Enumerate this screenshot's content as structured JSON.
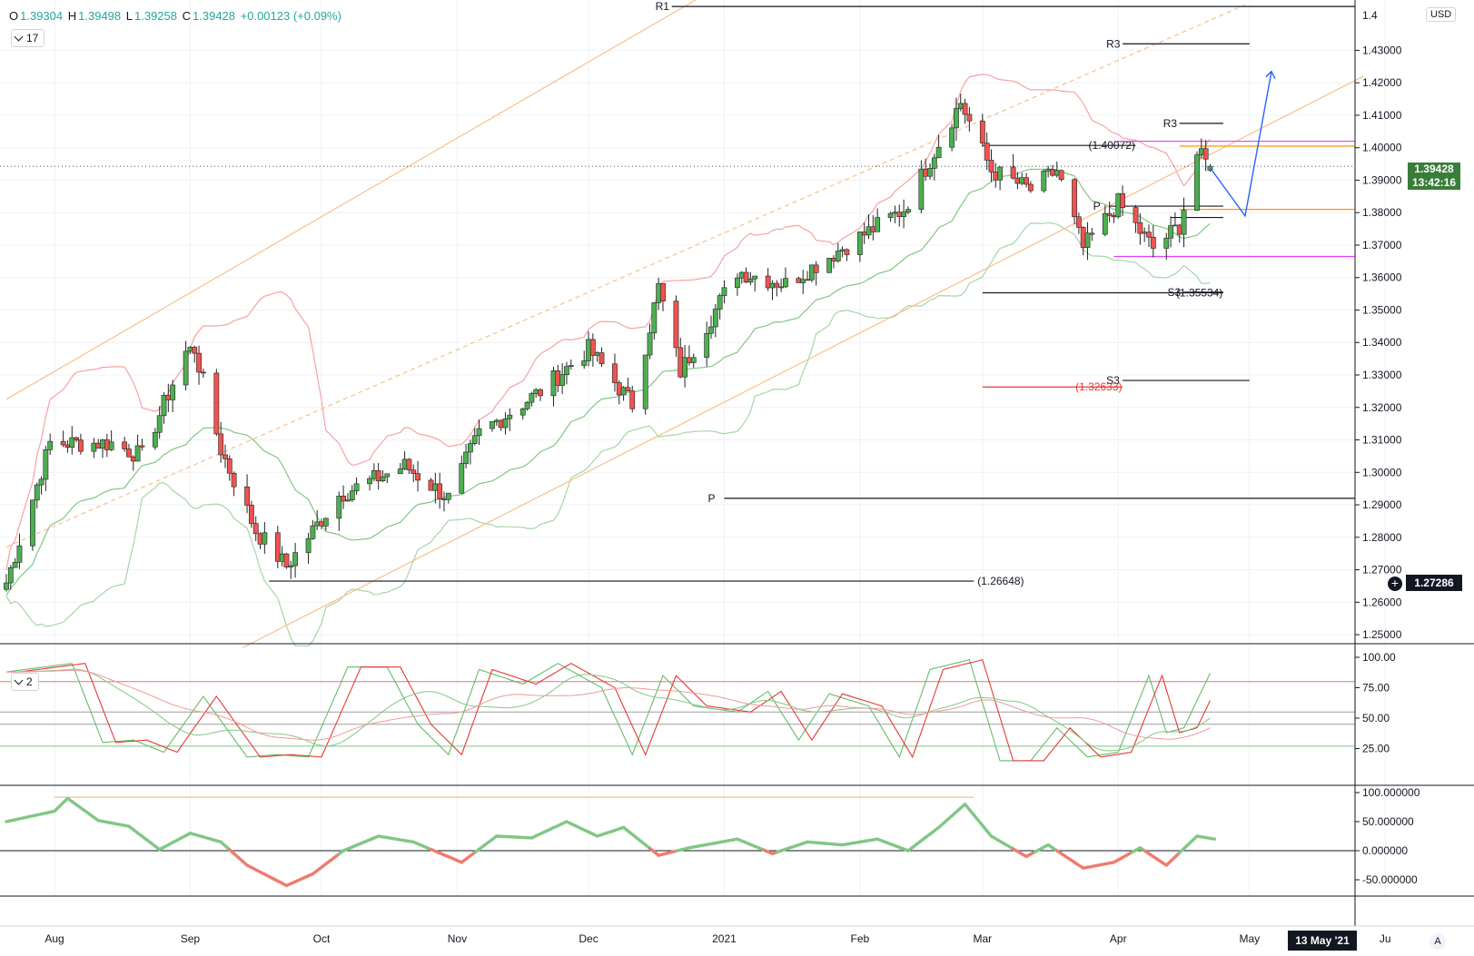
{
  "header": {
    "o_label": "O",
    "o_value": "1.39304",
    "h_label": "H",
    "h_value": "1.39498",
    "l_label": "L",
    "l_value": "1.39258",
    "c_label": "C",
    "c_value": "1.39428",
    "change": "+0.00123 (+0.09%)"
  },
  "indicator_badges": {
    "main_count": "17",
    "oscillator_count": "2"
  },
  "currency": "USD",
  "last_price": {
    "price": "1.39428",
    "countdown": "13:42:16",
    "color": "#3a7d3a"
  },
  "crosshair": {
    "price": "1.27286",
    "date": "13 May '21"
  },
  "scale_mode_button": "A",
  "colors": {
    "up": "#4caf50",
    "down": "#ef5350",
    "bb_upper": "#f4a3a3",
    "bb_lower": "#a5d6a7",
    "channel": "#f7c08a",
    "forecast": "#2962ff"
  },
  "chart_data": [
    {
      "type": "candlestick",
      "symbol_currency": "USD",
      "x_ticks": [
        "Aug",
        "Sep",
        "Oct",
        "Nov",
        "Dec",
        "2021",
        "Feb",
        "Mar",
        "Apr",
        "May",
        "Ju"
      ],
      "y_ticks": [
        "1.43000",
        "1.42000",
        "1.41000",
        "1.40000",
        "1.39000",
        "1.38000",
        "1.37000",
        "1.36000",
        "1.35000",
        "1.34000",
        "1.33000",
        "1.32000",
        "1.31000",
        "1.30000",
        "1.29000",
        "1.28000",
        "1.27000",
        "1.26000",
        "1.25000"
      ],
      "ylim": [
        1.2475,
        1.4455
      ],
      "close_anchors": [
        [
          "2020-07-21",
          1.266
        ],
        [
          "2020-07-31",
          1.309
        ],
        [
          "2020-08-14",
          1.309
        ],
        [
          "2020-08-21",
          1.305
        ],
        [
          "2020-08-31",
          1.337
        ],
        [
          "2020-09-02",
          1.338
        ],
        [
          "2020-09-08",
          1.307
        ],
        [
          "2020-09-16",
          1.282
        ],
        [
          "2020-09-23",
          1.271
        ],
        [
          "2020-10-05",
          1.293
        ],
        [
          "2020-10-20",
          1.302
        ],
        [
          "2020-10-30",
          1.292
        ],
        [
          "2020-11-06",
          1.312
        ],
        [
          "2020-11-20",
          1.325
        ],
        [
          "2020-12-01",
          1.338
        ],
        [
          "2020-12-11",
          1.321
        ],
        [
          "2020-12-17",
          1.357
        ],
        [
          "2020-12-22",
          1.331
        ],
        [
          "2021-01-04",
          1.362
        ],
        [
          "2021-01-15",
          1.358
        ],
        [
          "2021-01-29",
          1.37
        ],
        [
          "2021-02-11",
          1.381
        ],
        [
          "2021-02-24",
          1.414
        ],
        [
          "2021-03-03",
          1.393
        ],
        [
          "2021-03-12",
          1.387
        ],
        [
          "2021-03-18",
          1.393
        ],
        [
          "2021-03-24",
          1.369
        ],
        [
          "2021-04-01",
          1.383
        ],
        [
          "2021-04-09",
          1.369
        ],
        [
          "2021-04-15",
          1.376
        ],
        [
          "2021-04-19",
          1.398
        ],
        [
          "2021-04-22",
          1.3943
        ]
      ],
      "levels": [
        {
          "label": "R1",
          "value": 1.4435,
          "from": "2020-12-20",
          "to": "2021-06-10",
          "color": "#131722"
        },
        {
          "label": "R3",
          "value": 1.432,
          "from": "2021-04-02",
          "to": "2021-05-01",
          "color": "#131722"
        },
        {
          "label": "R3",
          "value": 1.4075,
          "from": "2021-04-15",
          "to": "2021-04-25",
          "color": "#131722"
        },
        {
          "label": "(1.40072)",
          "value": 1.4007,
          "from": "2021-03-01",
          "to": "2021-04-05",
          "color": "#131722"
        },
        {
          "label": "P",
          "value": 1.382,
          "from": "2021-03-30",
          "to": "2021-04-25",
          "color": "#131722"
        },
        {
          "label": "",
          "value": 1.3785,
          "from": "2021-04-13",
          "to": "2021-04-25",
          "color": "#131722"
        },
        {
          "label": "(1.35534)",
          "value": 1.3553,
          "from": "2021-03-01",
          "to": "2021-04-25",
          "color": "#131722"
        },
        {
          "label": "S3",
          "value": 1.3555,
          "from": "2021-04-16",
          "to": "2021-04-25",
          "color": "#131722"
        },
        {
          "label": "S3",
          "value": 1.3283,
          "from": "2021-04-02",
          "to": "2021-05-01",
          "color": "#131722"
        },
        {
          "label": "(1.32633)",
          "value": 1.3263,
          "from": "2021-03-01",
          "to": "2021-04-02",
          "color": "#e53935"
        },
        {
          "label": "P",
          "value": 1.292,
          "from": "2021-01-01",
          "to": "2021-06-10",
          "color": "#131722"
        },
        {
          "label": "(1.26648)",
          "value": 1.2665,
          "from": "2020-09-19",
          "to": "2021-02-27",
          "color": "#131722"
        },
        {
          "label": "",
          "value": 1.402,
          "from": "2021-03-31",
          "to": "2021-06-10",
          "color": "#e040fb"
        },
        {
          "label": "",
          "value": 1.3665,
          "from": "2021-03-31",
          "to": "2021-06-10",
          "color": "#e040fb"
        },
        {
          "label": "",
          "value": 1.4005,
          "from": "2021-04-15",
          "to": "2021-06-10",
          "color": "#ff9800"
        },
        {
          "label": "",
          "value": 1.381,
          "from": "2021-04-15",
          "to": "2021-06-10",
          "color": "#ff9800"
        }
      ],
      "forecast_path": [
        [
          "2021-04-22",
          1.3938
        ],
        [
          "2021-04-30",
          1.379
        ],
        [
          "2021-05-06",
          1.4235
        ]
      ]
    },
    {
      "type": "line",
      "title": "",
      "y_ticks": [
        "100.00",
        "75.00",
        "50.00",
        "25.00"
      ],
      "ylim": [
        0,
        105
      ],
      "hlines": [
        80,
        55,
        45,
        27
      ],
      "anchors": [
        [
          "2020-07-21",
          88
        ],
        [
          "2020-08-05",
          95
        ],
        [
          "2020-08-12",
          30
        ],
        [
          "2020-08-19",
          32
        ],
        [
          "2020-08-26",
          22
        ],
        [
          "2020-09-04",
          68
        ],
        [
          "2020-09-14",
          18
        ],
        [
          "2020-09-21",
          20
        ],
        [
          "2020-09-28",
          18
        ],
        [
          "2020-10-07",
          92
        ],
        [
          "2020-10-16",
          92
        ],
        [
          "2020-10-23",
          45
        ],
        [
          "2020-10-30",
          20
        ],
        [
          "2020-11-06",
          90
        ],
        [
          "2020-11-16",
          78
        ],
        [
          "2020-11-24",
          95
        ],
        [
          "2020-12-04",
          75
        ],
        [
          "2020-12-11",
          20
        ],
        [
          "2020-12-18",
          85
        ],
        [
          "2020-12-25",
          60
        ],
        [
          "2021-01-04",
          55
        ],
        [
          "2021-01-11",
          72
        ],
        [
          "2021-01-18",
          32
        ],
        [
          "2021-01-25",
          70
        ],
        [
          "2021-02-03",
          60
        ],
        [
          "2021-02-10",
          18
        ],
        [
          "2021-02-17",
          90
        ],
        [
          "2021-02-26",
          98
        ],
        [
          "2021-03-05",
          15
        ],
        [
          "2021-03-12",
          15
        ],
        [
          "2021-03-18",
          42
        ],
        [
          "2021-03-25",
          18
        ],
        [
          "2021-04-01",
          22
        ],
        [
          "2021-04-08",
          85
        ],
        [
          "2021-04-12",
          38
        ],
        [
          "2021-04-16",
          42
        ],
        [
          "2021-04-22",
          87
        ]
      ]
    },
    {
      "type": "line",
      "title": "",
      "y_ticks": [
        "100.000000",
        "50.000000",
        "0.000000",
        "-50.000000"
      ],
      "ylim": [
        -75,
        108
      ],
      "hline": 0,
      "anchors": [
        [
          "2020-07-21",
          50
        ],
        [
          "2020-08-01",
          68
        ],
        [
          "2020-08-04",
          90
        ],
        [
          "2020-08-11",
          52
        ],
        [
          "2020-08-18",
          42
        ],
        [
          "2020-08-25",
          2
        ],
        [
          "2020-09-01",
          30
        ],
        [
          "2020-09-08",
          15
        ],
        [
          "2020-09-14",
          -25
        ],
        [
          "2020-09-23",
          -60
        ],
        [
          "2020-09-29",
          -40
        ],
        [
          "2020-10-06",
          0
        ],
        [
          "2020-10-14",
          25
        ],
        [
          "2020-10-22",
          15
        ],
        [
          "2020-11-02",
          -20
        ],
        [
          "2020-11-10",
          25
        ],
        [
          "2020-11-18",
          22
        ],
        [
          "2020-11-26",
          50
        ],
        [
          "2020-12-03",
          25
        ],
        [
          "2020-12-09",
          40
        ],
        [
          "2020-12-17",
          -8
        ],
        [
          "2020-12-24",
          5
        ],
        [
          "2021-01-04",
          20
        ],
        [
          "2021-01-12",
          -5
        ],
        [
          "2021-01-20",
          15
        ],
        [
          "2021-01-28",
          10
        ],
        [
          "2021-02-05",
          20
        ],
        [
          "2021-02-12",
          0
        ],
        [
          "2021-02-19",
          40
        ],
        [
          "2021-02-25",
          80
        ],
        [
          "2021-03-03",
          25
        ],
        [
          "2021-03-11",
          -10
        ],
        [
          "2021-03-16",
          10
        ],
        [
          "2021-03-24",
          -30
        ],
        [
          "2021-03-31",
          -20
        ],
        [
          "2021-04-06",
          5
        ],
        [
          "2021-04-12",
          -25
        ],
        [
          "2021-04-19",
          25
        ],
        [
          "2021-04-23",
          20
        ]
      ],
      "reference": {
        "value": 92,
        "from": "2020-08-01",
        "to": "2021-02-27"
      }
    }
  ]
}
